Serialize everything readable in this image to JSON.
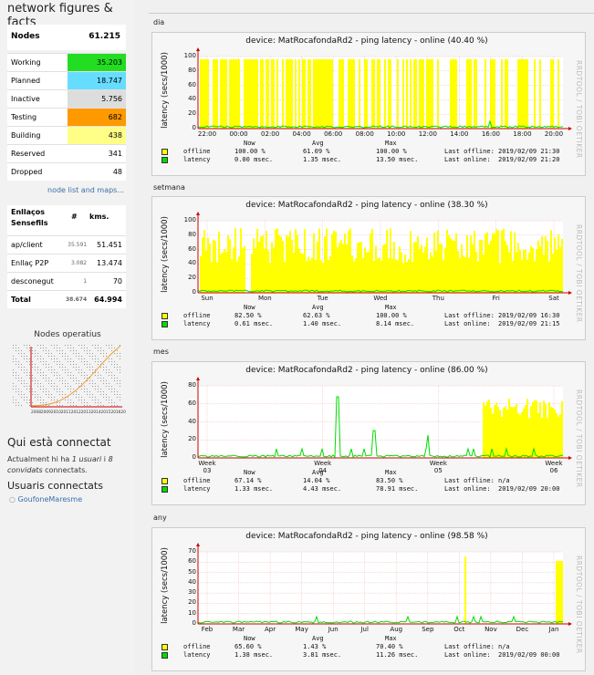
{
  "sidebar": {
    "title": "network figures & facts",
    "nodes_header": {
      "label": "Nodes",
      "total": "61.215"
    },
    "node_rows": [
      {
        "label": "Working",
        "value": "35.203",
        "color": "#22dd22"
      },
      {
        "label": "Planned",
        "value": "18.747",
        "color": "#66ddff"
      },
      {
        "label": "Inactive",
        "value": "5.756",
        "color": "#dddddd"
      },
      {
        "label": "Testing",
        "value": "682",
        "color": "#ff9900"
      },
      {
        "label": "Building",
        "value": "438",
        "color": "#ffff88"
      },
      {
        "label": "Reserved",
        "value": "341",
        "color": "#ffffff"
      },
      {
        "label": "Dropped",
        "value": "48",
        "color": "#ffffff"
      }
    ],
    "node_list_link": "node list and maps...",
    "links_header": {
      "col1": "Enllaços Sensefils",
      "col2": "#",
      "col3": "kms."
    },
    "link_rows": [
      {
        "label": "ap/client",
        "count": "35.591",
        "kms": "51.451"
      },
      {
        "label": "Enllaç P2P",
        "count": "3.082",
        "kms": "13.474"
      },
      {
        "label": "desconegut",
        "count": "1",
        "kms": "70"
      },
      {
        "label": "Total",
        "count": "38.674",
        "kms": "64.994"
      }
    ],
    "mini_chart_title": "Nodes operatius",
    "mini_chart_axis": "2008200920102011201220132014201520162017201820192",
    "who_title": "Qui està connectat",
    "who_text_1": "Actualment hi ha ",
    "who_users": "1 usuari",
    "who_text_2": " i ",
    "who_guests": "8 convidats",
    "who_text_3": " connectats.",
    "users_title": "Usuaris connectats",
    "user_name": "GoufoneMaresme"
  },
  "graphs": [
    {
      "section": "dia",
      "title": "device: MatRocafondaRd2 - ping latency - online (40.40 %)",
      "ylabel": "latency (secs/1000)",
      "yticks": [
        "100",
        "80",
        "60",
        "40",
        "20",
        "0"
      ],
      "xticks": [
        "22:00",
        "00:00",
        "02:00",
        "04:00",
        "06:00",
        "08:00",
        "10:00",
        "12:00",
        "14:00",
        "16:00",
        "18:00",
        "20:00"
      ],
      "offline": {
        "now": "100.00 %",
        "avg": "61.09 %",
        "max": "100.00 %",
        "last": "Last offline: 2019/02/09 21:30"
      },
      "latency": {
        "now": "0.00 msec.",
        "avg": "1.35 msec.",
        "max": "13.50 msec.",
        "last": "Last online:  2019/02/09 21:20"
      }
    },
    {
      "section": "setmana",
      "title": "device: MatRocafondaRd2 - ping latency - online (38.30 %)",
      "ylabel": "latency (secs/1000)",
      "yticks": [
        "100",
        "80",
        "60",
        "40",
        "20",
        "0"
      ],
      "xticks": [
        "Sun",
        "Mon",
        "Tue",
        "Wed",
        "Thu",
        "Fri",
        "Sat"
      ],
      "offline": {
        "now": "82.50 %",
        "avg": "62.63 %",
        "max": "100.00 %",
        "last": "Last offline: 2019/02/09 16:30"
      },
      "latency": {
        "now": "0.61 msec.",
        "avg": "1.40 msec.",
        "max": "8.14 msec.",
        "last": "Last online:  2019/02/09 21:15"
      }
    },
    {
      "section": "mes",
      "title": "device: MatRocafondaRd2 - ping latency - online (86.00 %)",
      "ylabel": "latency (secs/1000)",
      "yticks": [
        "80",
        "60",
        "40",
        "20",
        "0"
      ],
      "xticks": [
        "Week 03",
        "Week 04",
        "Week 05",
        "Week 06"
      ],
      "offline": {
        "now": "67.14 %",
        "avg": "14.04 %",
        "max": "83.50 %",
        "last": "Last offline: n/a"
      },
      "latency": {
        "now": "1.33 msec.",
        "avg": "4.43 msec.",
        "max": "78.91 msec.",
        "last": "Last online:  2019/02/09 20:00"
      }
    },
    {
      "section": "any",
      "title": "device: MatRocafondaRd2 - ping latency - online (98.58 %)",
      "ylabel": "latency (secs/1000)",
      "yticks": [
        "70",
        "60",
        "50",
        "40",
        "30",
        "20",
        "10",
        "0"
      ],
      "xticks": [
        "Feb",
        "Mar",
        "Apr",
        "May",
        "Jun",
        "Jul",
        "Aug",
        "Sep",
        "Oct",
        "Nov",
        "Dec",
        "Jan"
      ],
      "offline": {
        "now": "65.60 %",
        "avg": "1.43 %",
        "max": "70.40 %",
        "last": "Last offline: n/a"
      },
      "latency": {
        "now": "1.38 msec.",
        "avg": "3.81 msec.",
        "max": "11.26 msec.",
        "last": "Last online:  2019/02/09 00:00"
      }
    }
  ],
  "legend_headers": {
    "now": "Now",
    "avg": "Avg",
    "max": "Max"
  },
  "legend_labels": {
    "offline": "offline",
    "latency": "latency"
  },
  "rrd_credit": "RRDTOOL / TOBI OETIKER",
  "colors": {
    "offline": "#ffff00",
    "latency": "#00dd00",
    "axis": "#cc0000"
  }
}
